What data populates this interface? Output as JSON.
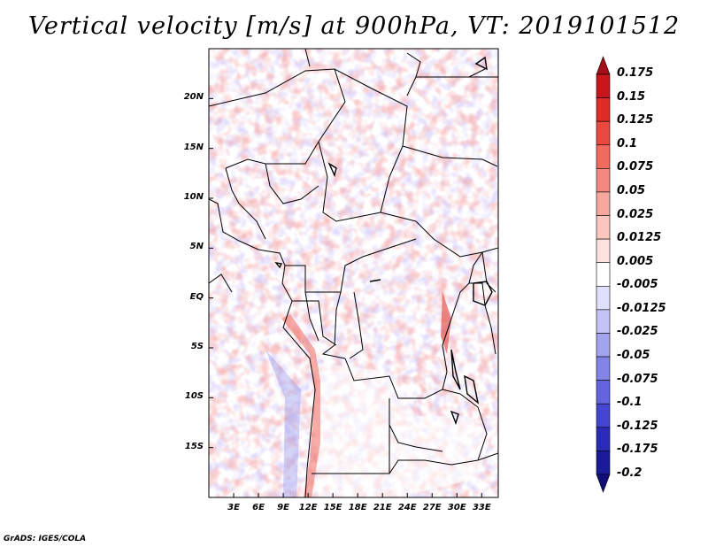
{
  "title": "Vertical velocity [m/s] at 900hPa, VT: 2019101512",
  "credit": "GrADS: IGES/COLA",
  "map": {
    "lon_range": [
      0,
      35
    ],
    "lat_range": [
      -20,
      25
    ],
    "lat_labels": [
      "20N",
      "15N",
      "10N",
      "5N",
      "EQ",
      "5S",
      "10S",
      "15S"
    ],
    "lat_values": [
      20,
      15,
      10,
      5,
      0,
      -5,
      -10,
      -15
    ],
    "lon_labels": [
      "3E",
      "6E",
      "9E",
      "12E",
      "15E",
      "18E",
      "21E",
      "24E",
      "27E",
      "30E",
      "33E"
    ],
    "lon_values": [
      3,
      6,
      9,
      12,
      15,
      18,
      21,
      24,
      27,
      30,
      33
    ]
  },
  "colorbar": {
    "labels": [
      "0.175",
      "0.15",
      "0.125",
      "0.1",
      "0.075",
      "0.05",
      "0.025",
      "0.0125",
      "0.005",
      "-0.005",
      "-0.0125",
      "-0.025",
      "-0.05",
      "-0.075",
      "-0.1",
      "-0.125",
      "-0.175",
      "-0.2"
    ],
    "colors": [
      "#a50f15",
      "#c8161d",
      "#de2d26",
      "#e84a3f",
      "#ef6b5e",
      "#f3897e",
      "#f7a79e",
      "#fac6bf",
      "#fde3df",
      "#ffffff",
      "#dfe0fb",
      "#c2c3f6",
      "#a3a4f0",
      "#8384e8",
      "#6465de",
      "#4446cf",
      "#2a2cb8",
      "#1a1b99",
      "#120c78"
    ]
  }
}
